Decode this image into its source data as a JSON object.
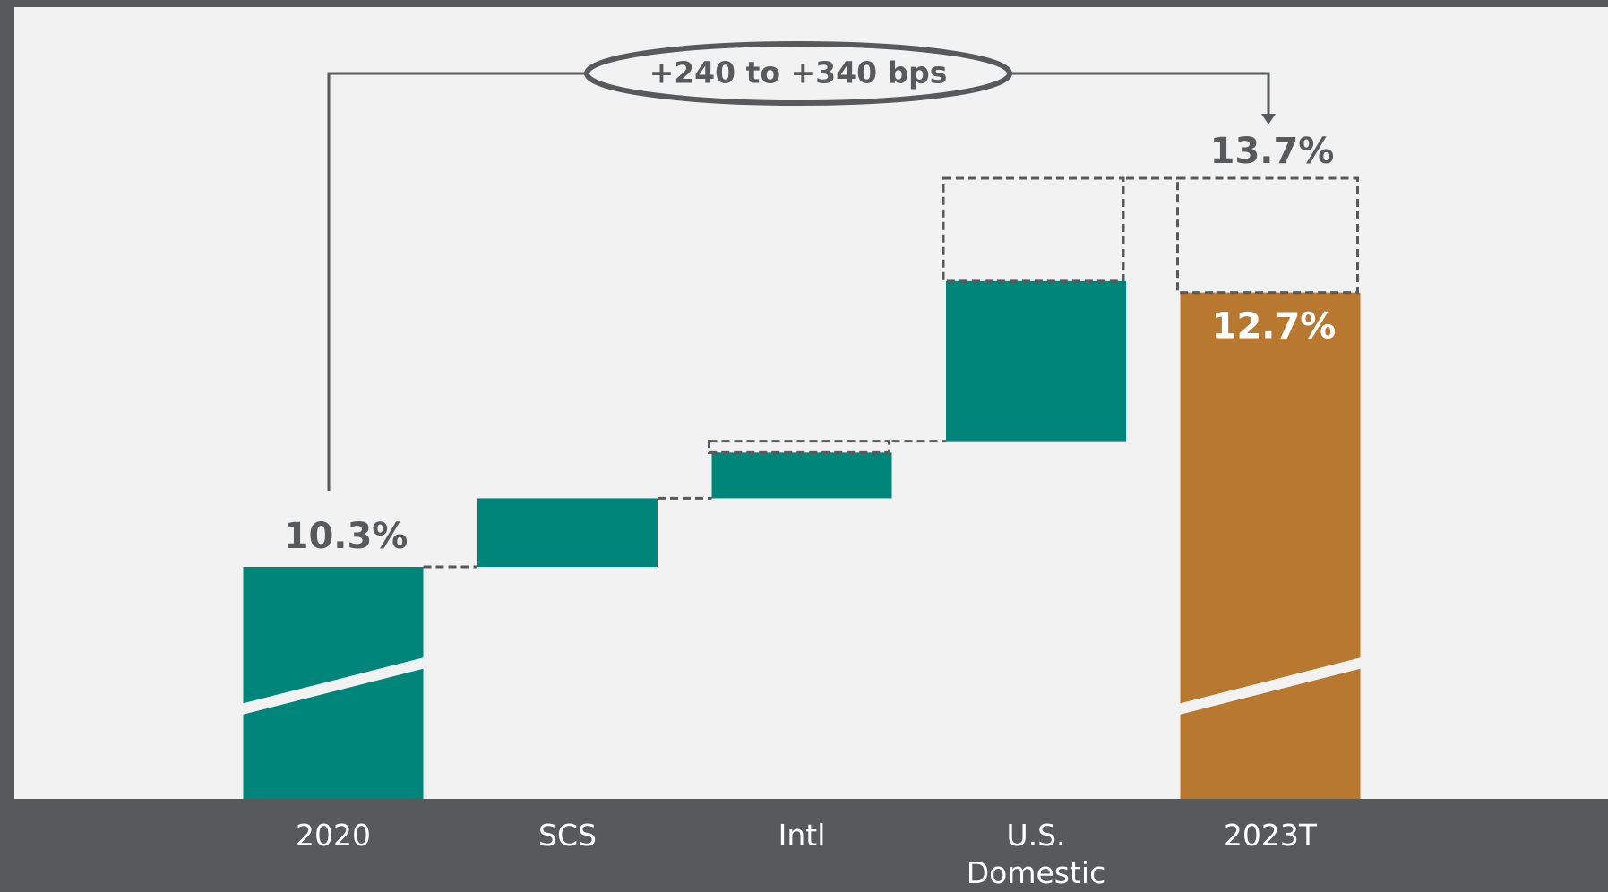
{
  "chart_data": {
    "type": "waterfall",
    "categories": [
      "2020",
      "SCS",
      "Intl",
      "U.S. Domestic",
      "2023T"
    ],
    "values": [
      10.3,
      0.6,
      0.4,
      1.4,
      12.7
    ],
    "value_labels": [
      "10.3%",
      null,
      null,
      null,
      "12.7%"
    ],
    "upside": [
      null,
      0,
      0.1,
      0.9,
      null
    ],
    "high_values": [
      null,
      null,
      null,
      null,
      13.7
    ],
    "high_labels": [
      null,
      null,
      null,
      null,
      "13.7%"
    ],
    "annotation": "+240 to +340 bps",
    "colors": {
      "total": "#00857a",
      "increase": "#00857a",
      "target": "#b8782f"
    },
    "axis_break": true
  }
}
